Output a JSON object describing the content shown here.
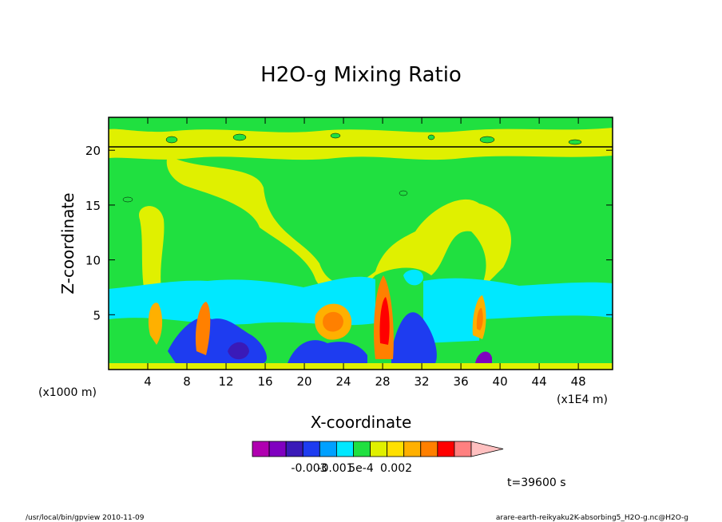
{
  "chart_data": {
    "type": "heatmap",
    "title": "H2O-g Mixing Ratio",
    "xlabel": "X-coordinate",
    "ylabel": "Z-coordinate",
    "x_unit_left": "(x1000 m)",
    "x_unit_right": "(x1E4 m)",
    "xlim": [
      0,
      51.5
    ],
    "ylim": [
      0,
      23
    ],
    "x_ticks": [
      "4",
      "8",
      "12",
      "16",
      "20",
      "24",
      "28",
      "32",
      "36",
      "40",
      "44",
      "48"
    ],
    "y_ticks": [
      "5",
      "10",
      "15",
      "20"
    ],
    "colorbar": {
      "colors": [
        "#b000b0",
        "#8000c0",
        "#3a1ab8",
        "#1e3cf0",
        "#00a0ff",
        "#00e8ff",
        "#20e040",
        "#e0f000",
        "#ffe000",
        "#ffb000",
        "#ff8000",
        "#ff0000",
        "#ff8080",
        "#ffc0c0"
      ],
      "labels": [
        "-0.003",
        "-0.001",
        "5e-4",
        "0.002"
      ]
    },
    "time_label": "t=39600 s"
  },
  "footer": {
    "left": "/usr/local/bin/gpview  2010-11-09",
    "right": "arare-earth-reikyaku2K-absorbing5_H2O-g.nc@H2O-g"
  }
}
